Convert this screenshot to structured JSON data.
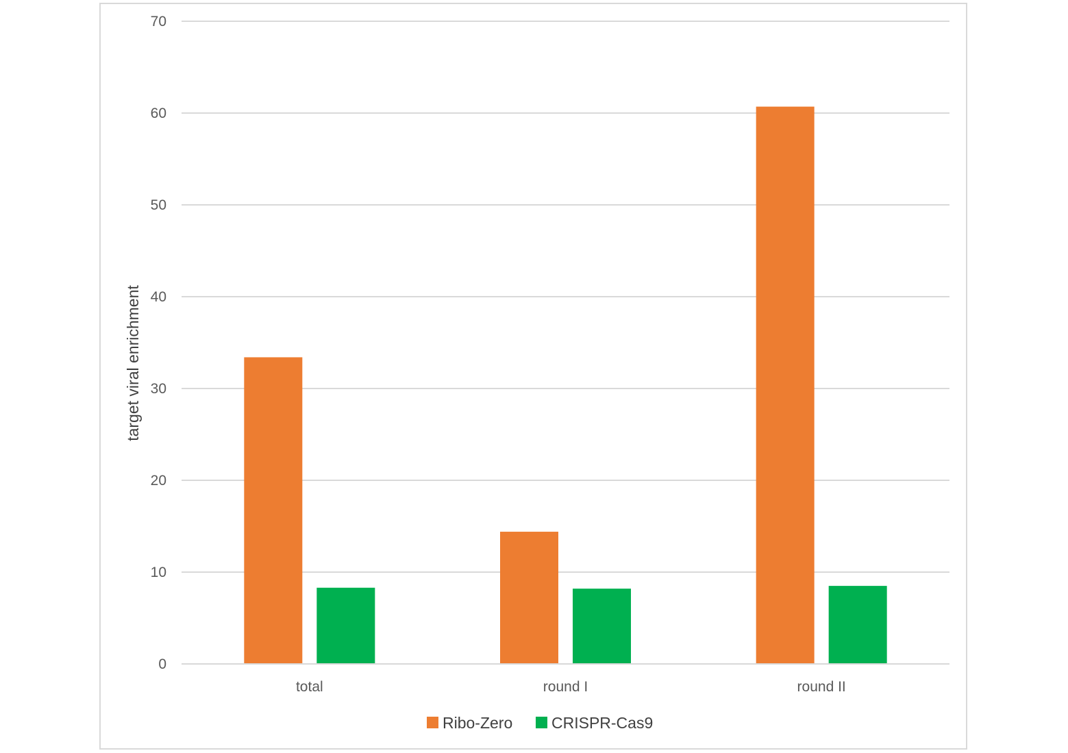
{
  "chart_data": {
    "type": "bar",
    "title": "",
    "xlabel": "",
    "ylabel": "target viral enrichment",
    "categories": [
      "total",
      "round I",
      "round II"
    ],
    "series": [
      {
        "name": "Ribo-Zero",
        "values": [
          33.4,
          14.4,
          60.7
        ]
      },
      {
        "name": "CRISPR-Cas9",
        "values": [
          8.3,
          8.2,
          8.5
        ]
      }
    ],
    "ylim": [
      0,
      70
    ],
    "yticks": [
      0,
      10,
      20,
      30,
      40,
      50,
      60,
      70
    ],
    "grid": true,
    "legend": "bottom-center",
    "colors": {
      "Ribo-Zero": "#ed7d31",
      "CRISPR-Cas9": "#00b050",
      "gridline": "#d9d9d9",
      "frame": "#d9d9d9"
    }
  }
}
